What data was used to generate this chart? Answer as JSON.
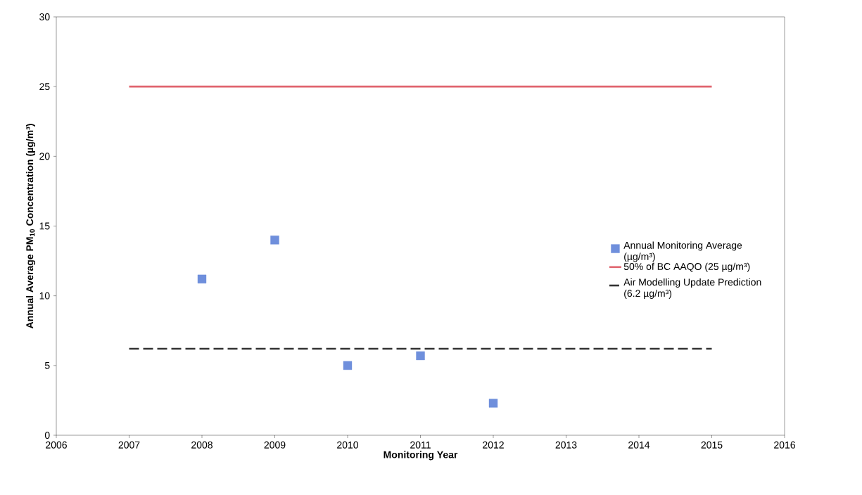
{
  "chart_data": {
    "type": "scatter",
    "xlabel": "Monitoring Year",
    "ylabel": "Annual Average PM$_{10}$ Concentration (µg/m³)",
    "xlim": [
      2006,
      2016
    ],
    "ylim": [
      0,
      30
    ],
    "xticks": [
      2006,
      2007,
      2008,
      2009,
      2010,
      2011,
      2012,
      2013,
      2014,
      2015,
      2016
    ],
    "yticks": [
      0,
      5,
      10,
      15,
      20,
      25,
      30
    ],
    "grid": false,
    "legend": "right",
    "series": [
      {
        "name": "Annual Monitoring Average (µg/m³)",
        "marker": "square",
        "color": "#6f8fdc",
        "x": [
          2008,
          2009,
          2010,
          2011,
          2012
        ],
        "values": [
          11.2,
          14.0,
          5.0,
          5.7,
          2.3
        ]
      },
      {
        "name": "50% of BC AAQO (25 µg/m³)",
        "type": "line",
        "line_style": "solid",
        "color": "#e0646e",
        "x": [
          2007,
          2015
        ],
        "values": [
          25,
          25
        ]
      },
      {
        "name": "Air Modelling Update Prediction (6.2 µg/m³)",
        "type": "line",
        "line_style": "dashed",
        "color": "#333333",
        "x": [
          2007,
          2015
        ],
        "values": [
          6.2,
          6.2
        ]
      }
    ]
  }
}
